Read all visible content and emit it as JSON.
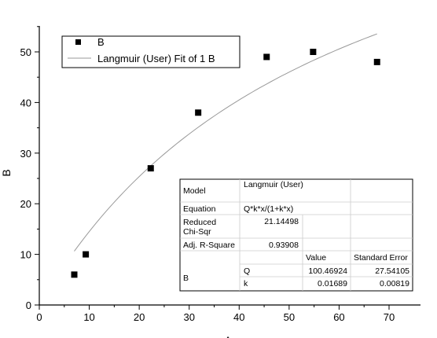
{
  "chart_data": {
    "type": "scatter",
    "title": "",
    "xlabel": "A",
    "ylabel": "B",
    "xlim": [
      0,
      75
    ],
    "ylim": [
      0,
      55
    ],
    "xticks": [
      0,
      10,
      20,
      30,
      40,
      50,
      60,
      70
    ],
    "yticks": [
      0,
      10,
      20,
      30,
      40,
      50
    ],
    "grid": false,
    "legend_position": "top-left",
    "series": [
      {
        "name": "B",
        "kind": "points",
        "marker": "square",
        "color": "#000000",
        "x": [
          7.0,
          9.3,
          22.3,
          31.8,
          45.5,
          54.8,
          67.6
        ],
        "y": [
          6.0,
          10.0,
          27.0,
          38.0,
          49.0,
          50.0,
          48.0
        ]
      },
      {
        "name": "Langmuir (User) Fit of 1 B",
        "kind": "fit-line",
        "color": "#999999",
        "x_range": [
          7.0,
          67.6
        ],
        "Q": 100.46924,
        "k": 0.01689
      }
    ],
    "stats_table": {
      "model_label": "Model",
      "model_value": "Langmuir (User)",
      "equation_label": "Equation",
      "equation_value": "Q*k*x/(1+k*x)",
      "chisqr_label_line1": "Reduced",
      "chisqr_label_line2": "Chi-Sqr",
      "chisqr_value": "21.14498",
      "r2_label": "Adj. R-Square",
      "r2_value": "0.93908",
      "value_header": "Value",
      "error_header": "Standard Error",
      "param_group": "B",
      "params": [
        {
          "name": "Q",
          "value": "100.46924",
          "error": "27.54105"
        },
        {
          "name": "k",
          "value": "0.01689",
          "error": "0.00819"
        }
      ]
    }
  }
}
